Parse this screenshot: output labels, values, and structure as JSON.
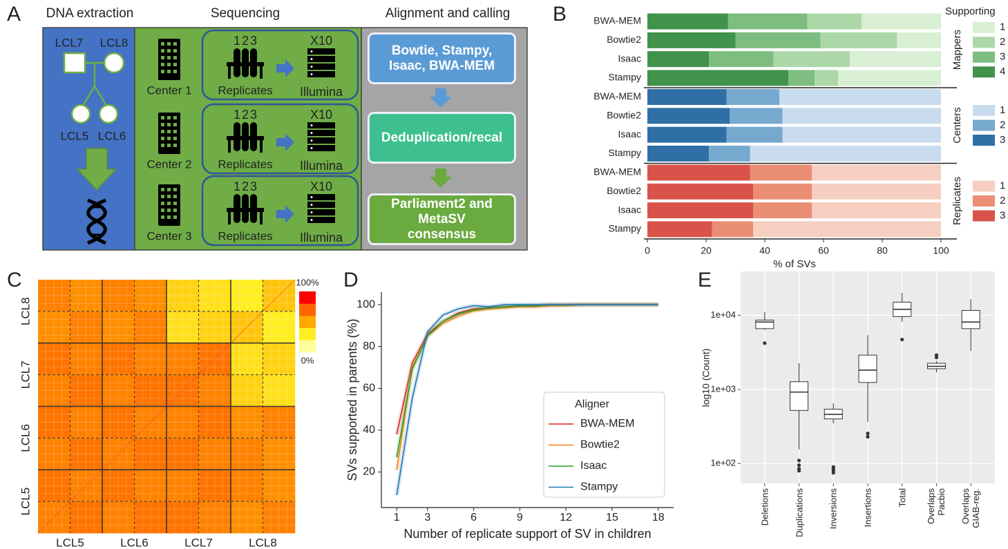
{
  "diagram": {
    "panel": "A",
    "columns": [
      {
        "title": "DNA extraction"
      },
      {
        "title": "Sequencing"
      },
      {
        "title": "Alignment and calling"
      }
    ],
    "family": {
      "members": [
        "LCL7",
        "LCL8",
        "LCL5",
        "LCL6"
      ]
    },
    "centers": [
      {
        "name": "Center 1",
        "replicates_label": "Replicates",
        "replicate_ids": [
          "1",
          "2",
          "3"
        ],
        "platform_model": "X10",
        "platform": "Illumina"
      },
      {
        "name": "Center 2",
        "replicates_label": "Replicates",
        "replicate_ids": [
          "1",
          "2",
          "3"
        ],
        "platform_model": "X10",
        "platform": "Illumina"
      },
      {
        "name": "Center 3",
        "replicates_label": "Replicates",
        "replicate_ids": [
          "1",
          "2",
          "3"
        ],
        "platform_model": "X10",
        "platform": "Illumina"
      }
    ],
    "pipeline": [
      "Bowtie, Stampy, Isaac, BWA-MEM",
      "Deduplication/recal",
      "Parliament2 and MetaSV consensus"
    ]
  },
  "chart_data": [
    {
      "panel": "B",
      "type": "bar",
      "xlabel": "% of SVs",
      "xlim": [
        0,
        100
      ],
      "xticks": [
        0,
        20,
        40,
        60,
        80,
        100
      ],
      "legend_title": "Supporting",
      "groups": [
        {
          "name": "Mappers",
          "categories": [
            "BWA-MEM",
            "Bowtie2",
            "Isaac",
            "Stampy"
          ],
          "series": [
            {
              "name": "4",
              "color": "#41924b",
              "values": [
                27.5,
                30,
                21,
                48
              ]
            },
            {
              "name": "3",
              "color": "#7dbd7f",
              "values": [
                27,
                29,
                22,
                9
              ]
            },
            {
              "name": "2",
              "color": "#acd8a8",
              "values": [
                18.5,
                26,
                26,
                8
              ]
            },
            {
              "name": "1",
              "color": "#d9efd4",
              "values": [
                27,
                15,
                31,
                35
              ]
            }
          ]
        },
        {
          "name": "Centers",
          "categories": [
            "BWA-MEM",
            "Bowtie2",
            "Isaac",
            "Stampy"
          ],
          "series": [
            {
              "name": "3",
              "color": "#2f6fa6",
              "values": [
                27,
                28,
                27,
                21
              ]
            },
            {
              "name": "2",
              "color": "#77a9cf",
              "values": [
                18,
                18,
                19,
                14
              ]
            },
            {
              "name": "1",
              "color": "#c9dcee",
              "values": [
                55,
                54,
                54,
                65
              ]
            }
          ]
        },
        {
          "name": "Replicates",
          "categories": [
            "BWA-MEM",
            "Bowtie2",
            "Isaac",
            "Stampy"
          ],
          "series": [
            {
              "name": "3",
              "color": "#d9534a",
              "values": [
                35,
                36,
                36,
                22
              ]
            },
            {
              "name": "2",
              "color": "#ea8e75",
              "values": [
                21,
                20,
                20,
                14
              ]
            },
            {
              "name": "1",
              "color": "#f6cfc0",
              "values": [
                44,
                44,
                44,
                64
              ]
            }
          ]
        }
      ]
    },
    {
      "panel": "C",
      "type": "heatmap",
      "x_categories": [
        "LCL5",
        "LCL6",
        "LCL7",
        "LCL8"
      ],
      "y_categories": [
        "LCL8",
        "LCL7",
        "LCL6",
        "LCL5"
      ],
      "zlim": [
        0,
        100
      ],
      "values": [
        [
          65,
          60,
          65,
          60,
          35,
          30,
          25,
          40
        ],
        [
          60,
          65,
          60,
          65,
          30,
          35,
          40,
          25
        ],
        [
          70,
          65,
          70,
          65,
          65,
          70,
          30,
          35
        ],
        [
          65,
          70,
          65,
          70,
          70,
          65,
          35,
          30
        ],
        [
          70,
          65,
          70,
          65,
          65,
          70,
          60,
          65
        ],
        [
          65,
          70,
          65,
          70,
          70,
          65,
          65,
          60
        ],
        [
          70,
          65,
          70,
          65,
          65,
          70,
          65,
          60
        ],
        [
          65,
          70,
          65,
          70,
          70,
          65,
          60,
          65
        ]
      ],
      "colorbar": {
        "colors": [
          "#ffff99",
          "#ffee22",
          "#ffaa00",
          "#ff6600",
          "#ff0000"
        ],
        "ticks": [
          {
            "value": 100,
            "label": "100%"
          },
          {
            "value": 0,
            "label": "0%"
          }
        ]
      }
    },
    {
      "panel": "D",
      "type": "line",
      "xlabel": "Number of replicate support of SV in children",
      "ylabel": "SVs supported in parents (%)",
      "x": [
        1,
        2,
        3,
        4,
        5,
        6,
        7,
        8,
        9,
        10,
        11,
        12,
        13,
        14,
        15,
        16,
        17,
        18
      ],
      "xlim": [
        0,
        19
      ],
      "ylim": [
        3,
        106
      ],
      "xticks": [
        1,
        3,
        6,
        9,
        12,
        15,
        18
      ],
      "yticks": [
        20,
        40,
        60,
        80,
        100
      ],
      "legend_title": "Aligner",
      "legend": "lower right",
      "series": [
        {
          "name": "BWA-MEM",
          "color": "#d62728",
          "values": [
            38,
            72,
            86,
            92,
            96,
            98,
            98.5,
            99,
            99.5,
            99.5,
            100,
            100,
            100,
            100,
            100,
            100,
            100,
            100
          ]
        },
        {
          "name": "Bowtie2",
          "color": "#ff7f0e",
          "values": [
            21,
            70,
            85,
            91,
            94.5,
            97,
            98,
            98.5,
            99,
            99,
            99.5,
            99.5,
            100,
            100,
            100,
            100,
            100,
            100
          ]
        },
        {
          "name": "Isaac",
          "color": "#2ca02c",
          "values": [
            27,
            69,
            85,
            92,
            95.5,
            97.5,
            98.5,
            99,
            99.5,
            99.5,
            100,
            100,
            100,
            100,
            100,
            100,
            100,
            100
          ]
        },
        {
          "name": "Stampy",
          "color": "#1f77b4",
          "values": [
            9,
            55,
            87,
            95,
            98,
            99.5,
            99,
            100,
            100,
            100,
            100,
            100,
            100,
            100,
            100,
            100,
            100,
            100
          ]
        }
      ]
    },
    {
      "panel": "E",
      "type": "box",
      "ylabel": "log10 (Count)",
      "log_scale": true,
      "grid": true,
      "ylim": [
        54,
        39000
      ],
      "yticks": [
        {
          "value": 100,
          "label": "1e+02"
        },
        {
          "value": 1000,
          "label": "1e+03"
        },
        {
          "value": 10000,
          "label": "1e+04"
        }
      ],
      "categories": [
        "Deletions",
        "Duplications",
        "Inversions",
        "Insertions",
        "Total",
        "Overlaps Pacbio",
        "Overlaps GIAB-reg."
      ],
      "boxes": [
        {
          "whislo": 6300,
          "q1": 6600,
          "med": 8100,
          "q3": 8600,
          "whishi": 11000,
          "outliers": [
            4200
          ]
        },
        {
          "whislo": 155,
          "q1": 520,
          "med": 920,
          "q3": 1270,
          "whishi": 2250,
          "outliers": [
            110,
            95,
            85,
            80
          ]
        },
        {
          "whislo": 350,
          "q1": 400,
          "med": 460,
          "q3": 540,
          "whishi": 650,
          "outliers": [
            90,
            85,
            80,
            75
          ]
        },
        {
          "whislo": 365,
          "q1": 1240,
          "med": 1820,
          "q3": 2900,
          "whishi": 5400,
          "outliers": [
            255,
            230
          ]
        },
        {
          "whislo": 8200,
          "q1": 9600,
          "med": 12000,
          "q3": 15000,
          "whishi": 20000,
          "outliers": [
            4700
          ]
        },
        {
          "whislo": 1700,
          "q1": 1900,
          "med": 2050,
          "q3": 2250,
          "whishi": 2400,
          "outliers": [
            2900,
            2700
          ]
        },
        {
          "whislo": 3300,
          "q1": 6600,
          "med": 8100,
          "q3": 11600,
          "whishi": 16400,
          "outliers": []
        }
      ]
    }
  ]
}
